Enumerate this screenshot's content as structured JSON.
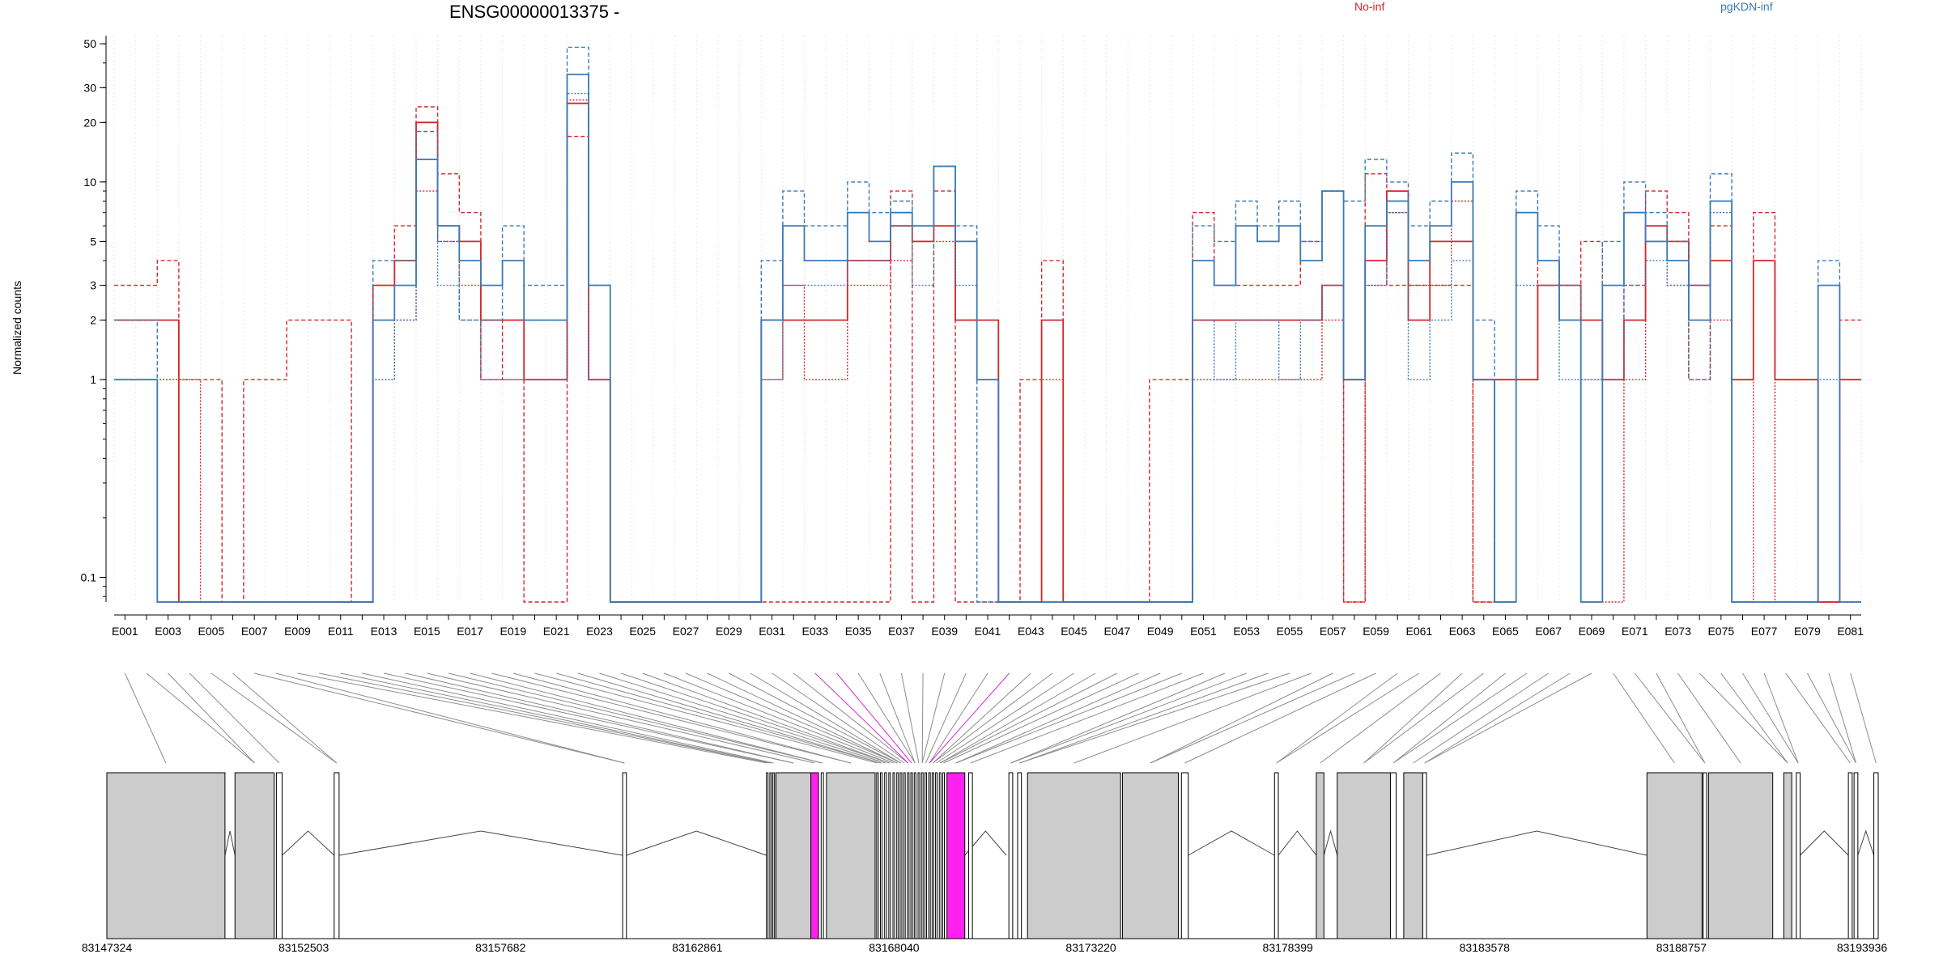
{
  "chart_data": {
    "type": "line",
    "title": "ENSG00000013375 -",
    "ylabel": "Normalized counts",
    "xlabel": "",
    "y_scale": "log",
    "ylim": [
      0.075,
      55
    ],
    "y_ticks": [
      0.1,
      1,
      2,
      3,
      5,
      10,
      20,
      30,
      50
    ],
    "y_tick_labels": [
      "0.1",
      "1",
      "2",
      "3",
      "5",
      "10",
      "20",
      "30",
      "50"
    ],
    "vertical_gridlines": true,
    "legend": {
      "placement": "top",
      "entries": [
        {
          "label": "No-inf",
          "color": "#d62728"
        },
        {
          "label": "pgKDN-inf",
          "color": "#3a7ab5"
        }
      ]
    },
    "exons": [
      "E001",
      "E002",
      "E003",
      "E004",
      "E005",
      "E006",
      "E007",
      "E008",
      "E009",
      "E010",
      "E011",
      "E012",
      "E013",
      "E014",
      "E015",
      "E016",
      "E017",
      "E018",
      "E019",
      "E020",
      "E021",
      "E022",
      "E023",
      "E024",
      "E025",
      "E026",
      "E027",
      "E028",
      "E029",
      "E030",
      "E031",
      "E032",
      "E033",
      "E034",
      "E035",
      "E036",
      "E037",
      "E038",
      "E039",
      "E040",
      "E041",
      "E042",
      "E043",
      "E044",
      "E045",
      "E046",
      "E047",
      "E048",
      "E049",
      "E050",
      "E051",
      "E052",
      "E053",
      "E054",
      "E055",
      "E056",
      "E057",
      "E058",
      "E059",
      "E060",
      "E061",
      "E062",
      "E063",
      "E064",
      "E065",
      "E066",
      "E067",
      "E068",
      "E069",
      "E070",
      "E071",
      "E072",
      "E073",
      "E074",
      "E075",
      "E076",
      "E077",
      "E078",
      "E079",
      "E080",
      "E081"
    ],
    "exon_tick_labels": [
      "E001",
      "",
      "E003",
      "",
      "E005",
      "",
      "E007",
      "",
      "E009",
      "",
      "E011",
      "",
      "E013",
      "",
      "E015",
      "",
      "E017",
      "",
      "E019",
      "",
      "E021",
      "",
      "E023",
      "",
      "E025",
      "",
      "E027",
      "",
      "E029",
      "",
      "E031",
      "",
      "E033",
      "",
      "E035",
      "",
      "E037",
      "",
      "E039",
      "",
      "E041",
      "",
      "E043",
      "",
      "E045",
      "",
      "E047",
      "",
      "E049",
      "",
      "E051",
      "",
      "E053",
      "",
      "E055",
      "",
      "E057",
      "",
      "E059",
      "",
      "E061",
      "",
      "E063",
      "",
      "E065",
      "",
      "E067",
      "",
      "E069",
      "",
      "E071",
      "",
      "E073",
      "",
      "E075",
      "",
      "E077",
      "",
      "E079",
      "",
      "E081"
    ],
    "series": [
      {
        "group": "No-inf",
        "style": "dashed",
        "color": "#d62728",
        "values": [
          3,
          3,
          4,
          1,
          1,
          0.075,
          1,
          1,
          2,
          2,
          2,
          0.075,
          3,
          6,
          24,
          11,
          7,
          1,
          2,
          0.075,
          0.075,
          17,
          3,
          0.075,
          0.075,
          0.075,
          0.075,
          0.075,
          0.075,
          0.075,
          0.075,
          0.075,
          0.075,
          0.075,
          0.075,
          0.075,
          9,
          0.075,
          9,
          0.075,
          0.075,
          0.075,
          1,
          4,
          0.075,
          0.075,
          0.075,
          0.075,
          1,
          1,
          7,
          3,
          3,
          3,
          3,
          5,
          9,
          0.075,
          11,
          3,
          3,
          3,
          3,
          0.075,
          1,
          1,
          4,
          2,
          5,
          1,
          3,
          9,
          7,
          1,
          6,
          1,
          7,
          1,
          1,
          0.075,
          2
        ]
      },
      {
        "group": "No-inf",
        "style": "solid",
        "color": "#d62728",
        "values": [
          2,
          2,
          2,
          0.075,
          0.075,
          0.075,
          0.075,
          0.075,
          0.075,
          0.075,
          0.075,
          0.075,
          3,
          4,
          20,
          6,
          5,
          2,
          2,
          1,
          1,
          25,
          1,
          0.075,
          0.075,
          0.075,
          0.075,
          0.075,
          0.075,
          0.075,
          2,
          2,
          2,
          2,
          4,
          4,
          6,
          5,
          6,
          2,
          2,
          0.075,
          0.075,
          2,
          0.075,
          0.075,
          0.075,
          0.075,
          0.075,
          0.075,
          2,
          2,
          2,
          2,
          2,
          2,
          3,
          1,
          4,
          9,
          2,
          5,
          5,
          1,
          1,
          1,
          3,
          3,
          2,
          1,
          2,
          6,
          5,
          3,
          4,
          1,
          4,
          1,
          1,
          0.075,
          1
        ]
      },
      {
        "group": "No-inf",
        "style": "dotted",
        "color": "#d62728",
        "values": [
          1,
          1,
          1,
          1,
          0.075,
          0.075,
          0.075,
          0.075,
          0.075,
          0.075,
          0.075,
          0.075,
          1,
          2,
          9,
          5,
          3,
          1,
          1,
          1,
          1,
          26,
          1,
          0.075,
          0.075,
          0.075,
          0.075,
          0.075,
          0.075,
          0.075,
          1,
          3,
          1,
          1,
          3,
          3,
          4,
          5,
          5,
          2,
          1,
          0.075,
          0.075,
          1,
          0.075,
          0.075,
          0.075,
          0.075,
          0.075,
          0.075,
          1,
          1,
          1,
          1,
          1,
          1,
          2,
          0.075,
          3,
          7,
          3,
          3,
          8,
          0.075,
          0.075,
          1,
          3,
          2,
          1,
          0.075,
          1,
          5,
          3,
          1,
          2,
          0.075,
          4,
          0.075,
          0.075,
          0.075,
          1
        ]
      },
      {
        "group": "pgKDN-inf",
        "style": "dashed",
        "color": "#3a7ab5",
        "values": [
          2,
          2,
          0.075,
          0.075,
          0.075,
          0.075,
          0.075,
          0.075,
          0.075,
          0.075,
          0.075,
          0.075,
          4,
          4,
          18,
          5,
          2,
          2,
          6,
          3,
          3,
          48,
          3,
          0.075,
          0.075,
          0.075,
          0.075,
          0.075,
          0.075,
          0.075,
          4,
          9,
          6,
          6,
          10,
          7,
          8,
          6,
          12,
          6,
          0.075,
          0.075,
          0.075,
          0.075,
          0.075,
          0.075,
          0.075,
          0.075,
          0.075,
          0.075,
          6,
          5,
          8,
          6,
          8,
          5,
          9,
          8,
          13,
          10,
          6,
          8,
          14,
          2,
          0.075,
          9,
          6,
          3,
          0.075,
          5,
          10,
          7,
          5,
          3,
          11,
          0.075,
          0.075,
          0.075,
          0.075,
          4,
          0.075
        ]
      },
      {
        "group": "pgKDN-inf",
        "style": "solid",
        "color": "#3a7ab5",
        "values": [
          1,
          1,
          0.075,
          0.075,
          0.075,
          0.075,
          0.075,
          0.075,
          0.075,
          0.075,
          0.075,
          0.075,
          2,
          3,
          13,
          6,
          4,
          3,
          4,
          2,
          2,
          35,
          3,
          0.075,
          0.075,
          0.075,
          0.075,
          0.075,
          0.075,
          0.075,
          2,
          6,
          4,
          4,
          7,
          5,
          7,
          6,
          12,
          5,
          1,
          0.075,
          0.075,
          0.075,
          0.075,
          0.075,
          0.075,
          0.075,
          0.075,
          0.075,
          4,
          3,
          6,
          5,
          6,
          4,
          9,
          1,
          6,
          8,
          4,
          6,
          10,
          1,
          0.075,
          7,
          4,
          2,
          0.075,
          3,
          7,
          5,
          4,
          2,
          8,
          0.075,
          0.075,
          0.075,
          0.075,
          3,
          0.075
        ]
      },
      {
        "group": "pgKDN-inf",
        "style": "dotted",
        "color": "#3a7ab5",
        "values": [
          1,
          1,
          0.075,
          0.075,
          0.075,
          0.075,
          0.075,
          0.075,
          0.075,
          0.075,
          0.075,
          0.075,
          1,
          2,
          13,
          3,
          2,
          1,
          1,
          1,
          1,
          28,
          1,
          0.075,
          0.075,
          0.075,
          0.075,
          0.075,
          0.075,
          0.075,
          1,
          3,
          3,
          3,
          4,
          4,
          6,
          3,
          12,
          3,
          1,
          0.075,
          0.075,
          0.075,
          0.075,
          0.075,
          0.075,
          0.075,
          0.075,
          0.075,
          2,
          1,
          2,
          2,
          1,
          2,
          3,
          1,
          3,
          7,
          1,
          2,
          4,
          1,
          0.075,
          3,
          3,
          1,
          1,
          1,
          3,
          4,
          3,
          1,
          7,
          0.075,
          0.075,
          0.075,
          0.075,
          1,
          0.075
        ]
      }
    ],
    "genome_axis": {
      "start": 83147324,
      "end": 83193936,
      "tick_values": [
        83147324,
        83152503,
        83157682,
        83162861,
        83168040,
        83173220,
        83178399,
        83183578,
        83188757,
        83193936
      ],
      "tick_labels": [
        "83147324",
        "83152503",
        "83157682",
        "83162861",
        "83168040",
        "83173220",
        "83178399",
        "83183578",
        "83188757",
        "83193936"
      ]
    },
    "exon_features": [
      {
        "start": 83147324,
        "end": 83150432,
        "fill": "#cccccc"
      },
      {
        "start": 83150695,
        "end": 83151728,
        "fill": "#cccccc"
      },
      {
        "start": 83151785,
        "end": 83151935,
        "fill": "#ffffff"
      },
      {
        "start": 83153305,
        "end": 83153435,
        "fill": "#ffffff"
      },
      {
        "start": 83160896,
        "end": 83160996,
        "fill": "#ffffff"
      },
      {
        "start": 83164680,
        "end": 83164710,
        "fill": "#ffffff"
      },
      {
        "start": 83164770,
        "end": 83164800,
        "fill": "#ffffff"
      },
      {
        "start": 83164850,
        "end": 83164880,
        "fill": "#ffffff"
      },
      {
        "start": 83164930,
        "end": 83165850,
        "fill": "#cccccc"
      },
      {
        "start": 83165850,
        "end": 83166050,
        "fill": "#ff22ee"
      },
      {
        "start": 83166120,
        "end": 83166180,
        "fill": "#ffffff"
      },
      {
        "start": 83166260,
        "end": 83167540,
        "fill": "#cccccc"
      },
      {
        "start": 83167580,
        "end": 83167620,
        "fill": "#ffffff"
      },
      {
        "start": 83167680,
        "end": 83167720,
        "fill": "#ffffff"
      },
      {
        "start": 83167790,
        "end": 83167840,
        "fill": "#ffffff"
      },
      {
        "start": 83167900,
        "end": 83167940,
        "fill": "#ffffff"
      },
      {
        "start": 83168010,
        "end": 83168050,
        "fill": "#ffffff"
      },
      {
        "start": 83168110,
        "end": 83168150,
        "fill": "#ffffff"
      },
      {
        "start": 83168200,
        "end": 83168240,
        "fill": "#ffffff"
      },
      {
        "start": 83168290,
        "end": 83168330,
        "fill": "#ffffff"
      },
      {
        "start": 83168390,
        "end": 83168430,
        "fill": "#ffffff"
      },
      {
        "start": 83168480,
        "end": 83168520,
        "fill": "#ffffff"
      },
      {
        "start": 83168570,
        "end": 83168610,
        "fill": "#ffffff"
      },
      {
        "start": 83168670,
        "end": 83168710,
        "fill": "#ffffff"
      },
      {
        "start": 83168760,
        "end": 83168800,
        "fill": "#ffffff"
      },
      {
        "start": 83168850,
        "end": 83168890,
        "fill": "#ffffff"
      },
      {
        "start": 83168950,
        "end": 83168990,
        "fill": "#ffffff"
      },
      {
        "start": 83169040,
        "end": 83169080,
        "fill": "#ffffff"
      },
      {
        "start": 83169130,
        "end": 83169170,
        "fill": "#ffffff"
      },
      {
        "start": 83169230,
        "end": 83169270,
        "fill": "#ffffff"
      },
      {
        "start": 83169320,
        "end": 83169360,
        "fill": "#ffffff"
      },
      {
        "start": 83169430,
        "end": 83169900,
        "fill": "#ff22ee"
      },
      {
        "start": 83170000,
        "end": 83170100,
        "fill": "#ffffff"
      },
      {
        "start": 83171060,
        "end": 83171160,
        "fill": "#ffffff"
      },
      {
        "start": 83171290,
        "end": 83171390,
        "fill": "#ffffff"
      },
      {
        "start": 83171550,
        "end": 83174000,
        "fill": "#cccccc"
      },
      {
        "start": 83174050,
        "end": 83175520,
        "fill": "#cccccc"
      },
      {
        "start": 83175600,
        "end": 83175780,
        "fill": "#ffffff"
      },
      {
        "start": 83178050,
        "end": 83178150,
        "fill": "#ffffff"
      },
      {
        "start": 83179150,
        "end": 83179350,
        "fill": "#cccccc"
      },
      {
        "start": 83179700,
        "end": 83181100,
        "fill": "#cccccc"
      },
      {
        "start": 83181100,
        "end": 83181250,
        "fill": "#ffffff"
      },
      {
        "start": 83181450,
        "end": 83181950,
        "fill": "#cccccc"
      },
      {
        "start": 83181950,
        "end": 83182050,
        "fill": "#ffffff"
      },
      {
        "start": 83187850,
        "end": 83189300,
        "fill": "#cccccc"
      },
      {
        "start": 83189330,
        "end": 83189420,
        "fill": "#ffffff"
      },
      {
        "start": 83189470,
        "end": 83191160,
        "fill": "#cccccc"
      },
      {
        "start": 83191450,
        "end": 83191660,
        "fill": "#cccccc"
      },
      {
        "start": 83191780,
        "end": 83191880,
        "fill": "#ffffff"
      },
      {
        "start": 83193150,
        "end": 83193250,
        "fill": "#ffffff"
      },
      {
        "start": 83193300,
        "end": 83193400,
        "fill": "#ffffff"
      },
      {
        "start": 83193820,
        "end": 83193936,
        "fill": "#ffffff"
      }
    ],
    "introns": [
      {
        "start": 83150432,
        "end": 83150695
      },
      {
        "start": 83151935,
        "end": 83153305
      },
      {
        "start": 83153435,
        "end": 83160896
      },
      {
        "start": 83160996,
        "end": 83164680
      },
      {
        "start": 83169900,
        "end": 83170990
      },
      {
        "start": 83175780,
        "end": 83178050
      },
      {
        "start": 83178150,
        "end": 83179150
      },
      {
        "start": 83179350,
        "end": 83179700
      },
      {
        "start": 83182050,
        "end": 83187850
      },
      {
        "start": 83191880,
        "end": 83193150
      },
      {
        "start": 83193400,
        "end": 83193820
      }
    ],
    "highlighted_connectors": [
      "E033",
      "E034",
      "E042"
    ]
  }
}
